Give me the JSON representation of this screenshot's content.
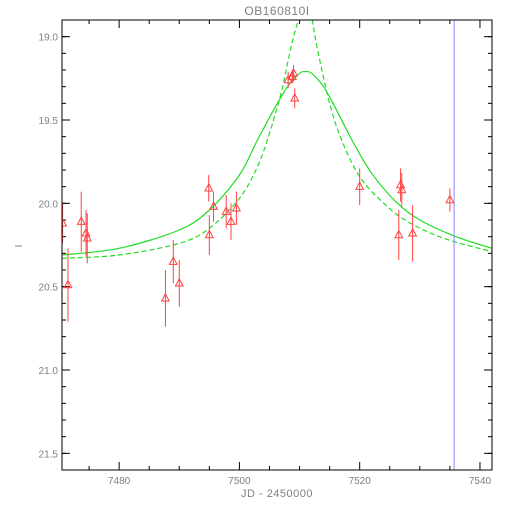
{
  "chart_data": {
    "type": "scatter",
    "title": "OB160810I",
    "xlabel": "JD - 2450000",
    "ylabel": "I",
    "xlim": [
      7470.5,
      7542
    ],
    "ylim": [
      21.6,
      18.9
    ],
    "y_inverted": true,
    "grid": false,
    "legend": "none",
    "xticks": [
      7480,
      7500,
      7520,
      7540
    ],
    "yticks": [
      19.0,
      19.5,
      20.0,
      20.5,
      21.0,
      21.5
    ],
    "ytick_labels": [
      "19.0",
      "19.5",
      "20.0",
      "20.5",
      "21.0",
      "21.5"
    ],
    "series": [
      {
        "kind": "points",
        "marker": "triangle-open",
        "color": "#ff4040",
        "x": [
          7470.6,
          7471.5,
          7473.7,
          7474.5,
          7474.7,
          7487.7,
          7489.0,
          7490.0,
          7494.9,
          7495.0,
          7495.7,
          7497.8,
          7498.6,
          7499.5,
          7508.1,
          7508.8,
          7509.0,
          7509.2,
          7520.0,
          7526.5,
          7526.8,
          7527.0,
          7528.8,
          7535.0
        ],
        "y": [
          20.12,
          20.49,
          20.11,
          20.18,
          20.21,
          20.57,
          20.35,
          20.48,
          19.91,
          20.19,
          20.02,
          20.05,
          20.11,
          20.03,
          19.26,
          19.24,
          19.22,
          19.37,
          19.9,
          20.19,
          19.89,
          19.92,
          20.18,
          19.98
        ],
        "err": [
          0.12,
          0.22,
          0.18,
          0.14,
          0.15,
          0.17,
          0.13,
          0.14,
          0.08,
          0.12,
          0.09,
          0.1,
          0.11,
          0.1,
          0.05,
          0.04,
          0.05,
          0.06,
          0.11,
          0.15,
          0.1,
          0.1,
          0.17,
          0.07
        ]
      },
      {
        "kind": "curve",
        "style": "solid",
        "color": "#22dd22",
        "x": [
          7470.5,
          7480,
          7490,
          7495,
          7500,
          7503,
          7506,
          7508,
          7510,
          7511,
          7512,
          7514,
          7516,
          7519,
          7522,
          7526,
          7530,
          7536,
          7542
        ],
        "y": [
          20.31,
          20.27,
          20.16,
          20.04,
          19.83,
          19.62,
          19.42,
          19.3,
          19.22,
          19.21,
          19.22,
          19.3,
          19.43,
          19.64,
          19.82,
          19.99,
          20.1,
          20.2,
          20.27
        ]
      },
      {
        "kind": "curve",
        "style": "dashed",
        "color": "#22dd22",
        "x": [
          7470.5,
          7480,
          7490,
          7495,
          7500,
          7503,
          7505,
          7507,
          7508,
          7509,
          7510,
          7510.7,
          7511.4,
          7512,
          7513,
          7515,
          7517,
          7520,
          7524,
          7528,
          7534,
          7542
        ],
        "y": [
          20.33,
          20.31,
          20.24,
          20.15,
          19.97,
          19.78,
          19.58,
          19.33,
          19.16,
          19.0,
          18.88,
          18.8,
          18.8,
          18.88,
          19.08,
          19.4,
          19.62,
          19.84,
          20.0,
          20.11,
          20.21,
          20.29
        ]
      },
      {
        "kind": "vline",
        "color": "#8888ff",
        "x": 7535.7
      }
    ]
  }
}
